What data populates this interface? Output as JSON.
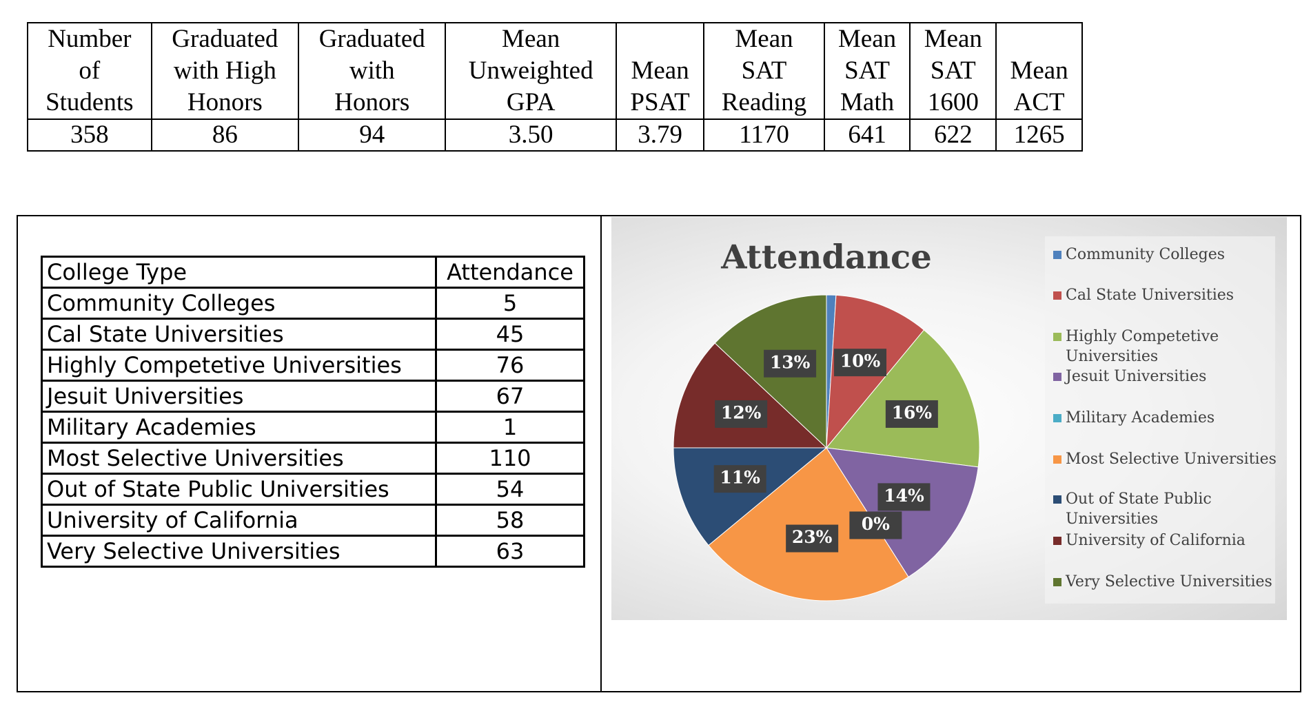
{
  "stats_table": {
    "headers": [
      [
        "Number",
        "of",
        "Students"
      ],
      [
        "Graduated",
        "with High",
        "Honors"
      ],
      [
        "Graduated",
        "with",
        "Honors"
      ],
      [
        "Mean",
        "Unweighted",
        "GPA"
      ],
      [
        "Mean",
        "PSAT"
      ],
      [
        "Mean",
        "SAT",
        "Reading"
      ],
      [
        "Mean",
        "SAT",
        "Math"
      ],
      [
        "Mean",
        "SAT",
        "1600"
      ],
      [
        "Mean",
        "ACT"
      ]
    ],
    "rows": [
      [
        "358",
        "86",
        "94",
        "3.50",
        "3.79",
        "1170",
        "641",
        "622",
        "1265"
      ]
    ]
  },
  "college_table": {
    "headers": [
      "College Type",
      "Attendance"
    ],
    "rows": [
      [
        "Community Colleges",
        "5"
      ],
      [
        "Cal State Universities",
        "45"
      ],
      [
        "Highly Competetive Universities",
        "76"
      ],
      [
        "Jesuit Universities",
        "67"
      ],
      [
        "Military Academies",
        "1"
      ],
      [
        "Most Selective Universities",
        "110"
      ],
      [
        "Out of State Public Universities",
        "54"
      ],
      [
        "University of California",
        "58"
      ],
      [
        "Very Selective Universities",
        "63"
      ]
    ]
  },
  "chart_data": {
    "type": "pie",
    "title": "Attendance",
    "categories": [
      "Community Colleges",
      "Cal State Universities",
      "Highly Competetive Universities",
      "Jesuit Universities",
      "Military Academies",
      "Most Selective Universities",
      "Out of State Public Universities",
      "University of California",
      "Very Selective Universities"
    ],
    "values": [
      1,
      10,
      16,
      14,
      0,
      23,
      11,
      12,
      13
    ],
    "value_labels": [
      null,
      "10%",
      "16%",
      "14%",
      "0%",
      "23%",
      "11%",
      "12%",
      "13%"
    ],
    "colors": [
      "#4f81bd",
      "#c0504d",
      "#9bbb59",
      "#8064a2",
      "#4bacc6",
      "#f79646",
      "#2c4d75",
      "#772c2a",
      "#5f7530"
    ]
  }
}
